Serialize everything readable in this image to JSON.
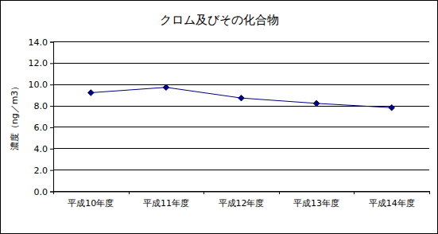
{
  "chart_data": {
    "type": "line",
    "title": "クロム及びその化合物",
    "y_label": "濃度（ng／m3）",
    "categories": [
      "平成10年度",
      "平成11年度",
      "平成12年度",
      "平成13年度",
      "平成14年度"
    ],
    "values": [
      9.2,
      9.7,
      8.7,
      8.2,
      7.8
    ],
    "color": "#000080",
    "marker": "diamond",
    "line_style": "solid",
    "ylim": [
      0,
      14
    ],
    "yticks": [
      {
        "value": 0,
        "label": "0.0"
      },
      {
        "value": 2,
        "label": "2.0"
      },
      {
        "value": 4,
        "label": "4.0"
      },
      {
        "value": 6,
        "label": "6.0"
      },
      {
        "value": 8,
        "label": "8.0"
      },
      {
        "value": 10,
        "label": "10.0"
      },
      {
        "value": 12,
        "label": "12.0"
      },
      {
        "value": 14,
        "label": "14.0"
      }
    ],
    "grid": true
  }
}
